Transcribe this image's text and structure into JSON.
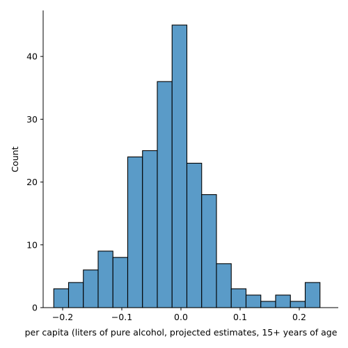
{
  "chart_data": {
    "type": "bar",
    "title": "",
    "xlabel": "per capita (liters of pure alcohol, projected estimates, 15+ years of age",
    "ylabel": "Count",
    "bin_edges": [
      -0.215,
      -0.19,
      -0.165,
      -0.14,
      -0.115,
      -0.09,
      -0.065,
      -0.04,
      -0.015,
      0.01,
      0.035,
      0.06,
      0.085,
      0.11,
      0.135,
      0.16,
      0.185,
      0.21,
      0.235
    ],
    "values": [
      3,
      4,
      6,
      9,
      8,
      24,
      25,
      36,
      45,
      23,
      18,
      7,
      3,
      2,
      1,
      2,
      1,
      4
    ],
    "xlim": [
      -0.24,
      0.27
    ],
    "ylim": [
      0,
      47
    ],
    "x_ticks": [
      -0.2,
      -0.1,
      0.0,
      0.1,
      0.2
    ],
    "x_tick_labels": [
      "−0.2",
      "−0.1",
      "0.0",
      "0.1",
      "0.2"
    ],
    "y_ticks": [
      0,
      10,
      20,
      30,
      40
    ],
    "y_tick_labels": [
      "0",
      "10",
      "20",
      "30",
      "40"
    ],
    "grid": false,
    "bar_color": "#5a9bc8"
  }
}
